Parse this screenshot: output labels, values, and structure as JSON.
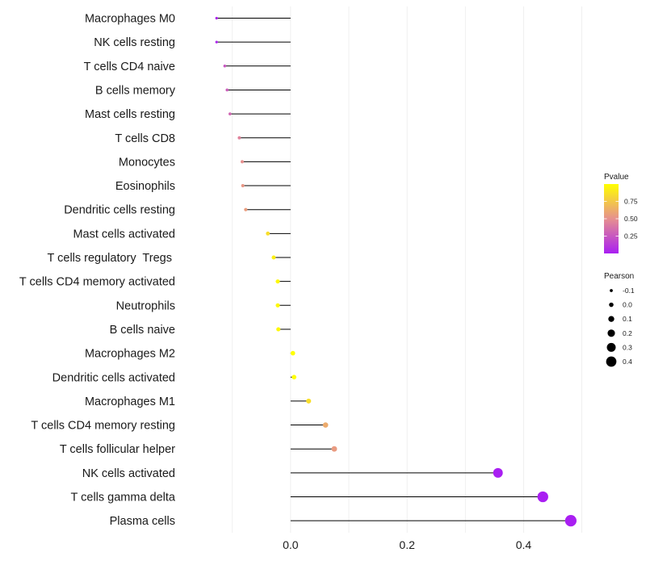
{
  "chart_data": {
    "type": "lollipop",
    "categories": [
      "Macrophages M0",
      "NK cells resting",
      "T cells CD4 naive",
      "B cells memory",
      "Mast cells resting",
      "T cells CD8",
      "Monocytes",
      "Eosinophils",
      "Dendritic cells resting",
      "Mast cells activated",
      "T cells regulatory  Tregs ",
      "T cells CD4 memory activated",
      "Neutrophils",
      "B cells naive",
      "Macrophages M2",
      "Dendritic cells activated",
      "Macrophages M1",
      "T cells CD4 memory resting",
      "T cells follicular helper",
      "NK cells activated",
      "T cells gamma delta",
      "Plasma cells"
    ],
    "pearson": [
      -0.127,
      -0.127,
      -0.113,
      -0.109,
      -0.104,
      -0.088,
      -0.083,
      -0.082,
      -0.077,
      -0.039,
      -0.029,
      -0.022,
      -0.022,
      -0.021,
      0.004,
      0.006,
      0.031,
      0.06,
      0.075,
      0.356,
      0.433,
      0.481
    ],
    "pvalue": [
      0.03,
      0.03,
      0.25,
      0.28,
      0.32,
      0.44,
      0.5,
      0.53,
      0.56,
      0.85,
      0.93,
      0.97,
      0.97,
      0.97,
      1.0,
      1.0,
      0.85,
      0.62,
      0.55,
      0.0,
      0.0,
      0.0
    ],
    "xlim": [
      -0.18,
      0.52
    ],
    "x_ticks": [
      0.0,
      0.2,
      0.4
    ],
    "x_tick_labels": [
      "0.0",
      "0.2",
      "0.4"
    ],
    "title": "",
    "xlabel": "",
    "ylabel": "",
    "colors": {
      "low": "#a91ff2",
      "mid": "#e6908f",
      "high": "#ffff00",
      "gridline": "#ebebeb",
      "stem": "#000000"
    },
    "legend": {
      "color_title": "Pvalue",
      "color_breaks": [
        0.25,
        0.5,
        0.75
      ],
      "color_labels": [
        "0.25",
        "0.50",
        "0.75"
      ],
      "color_range": [
        0.0,
        1.0
      ],
      "size_title": "Pearson",
      "size_breaks": [
        -0.1,
        0.0,
        0.1,
        0.2,
        0.3,
        0.4
      ],
      "size_labels": [
        "-0.1",
        "0.0",
        "0.1",
        "0.2",
        "0.3",
        "0.4"
      ]
    }
  }
}
